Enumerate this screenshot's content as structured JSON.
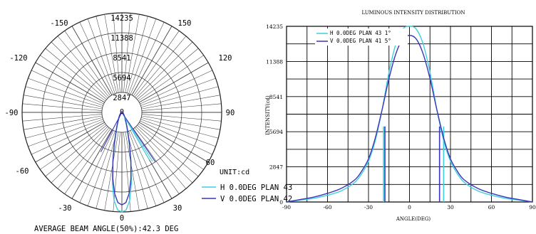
{
  "chart_data": [
    {
      "type": "polar",
      "rings": [
        "14235",
        "11388",
        "8541",
        "5694",
        "2847",
        "0"
      ],
      "angle_labels": [
        "-150",
        "150",
        "-120",
        "120",
        "-90",
        "90",
        "-60",
        "60",
        "-30",
        "30",
        "0"
      ],
      "unit_label": "UNIT:cd",
      "r_max": 14235,
      "legend": [
        {
          "name": "H 0.0DEG PLAN 43",
          "color": "#3ecfe0"
        },
        {
          "name": "V 0.0DEG PLAN 42",
          "color": "#3a36b8"
        }
      ],
      "beam_angle_text": "AVERAGE BEAM ANGLE(50%):42.3 DEG",
      "series": [
        {
          "name": "H 0.0DEG PLAN 43",
          "color": "#3ecfe0",
          "angles": [
            -90,
            -80,
            -70,
            -60,
            -50,
            -40,
            -35,
            -30,
            -25,
            -20,
            -15,
            -10,
            -5,
            0,
            5,
            10,
            15,
            20,
            25,
            30,
            35,
            40,
            50,
            60,
            70,
            80,
            90
          ],
          "values": [
            0,
            150,
            300,
            550,
            900,
            1600,
            2300,
            3300,
            5000,
            7500,
            10500,
            12800,
            14000,
            14235,
            14000,
            12800,
            10500,
            7500,
            5000,
            3300,
            2300,
            1600,
            900,
            550,
            300,
            150,
            0
          ]
        },
        {
          "name": "V 0.0DEG PLAN 42",
          "color": "#3a36b8",
          "angles": [
            -90,
            -80,
            -70,
            -60,
            -50,
            -40,
            -35,
            -30,
            -25,
            -20,
            -15,
            -10,
            -5,
            0,
            5,
            10,
            15,
            20,
            25,
            30,
            35,
            40,
            50,
            60,
            70,
            80,
            90
          ],
          "values": [
            0,
            200,
            400,
            700,
            1100,
            1800,
            2500,
            3500,
            5200,
            7500,
            10000,
            12000,
            13200,
            13500,
            13200,
            12000,
            10000,
            7500,
            5200,
            3500,
            2500,
            1800,
            1100,
            700,
            400,
            200,
            0
          ]
        }
      ]
    },
    {
      "type": "line",
      "title": "LUMINOUS INTENSITY DISTRIBUTION",
      "xlabel": "ANGLE(DEG)",
      "ylabel": "INTENSITY(cd)",
      "xlim": [
        -90,
        90
      ],
      "ylim": [
        0,
        14235
      ],
      "x_ticks": [
        "-90",
        "-60",
        "-30",
        "0",
        "30",
        "60",
        "90"
      ],
      "y_ticks": [
        "14235",
        "11388",
        "8541",
        "5694",
        "2847",
        "0"
      ],
      "grid": true,
      "legend_position": "top-left",
      "series": [
        {
          "name": "H 0.0DEG PLAN 43 1°",
          "color": "#3ecfe0",
          "x": [
            -90,
            -80,
            -70,
            -60,
            -50,
            -40,
            -35,
            -30,
            -25,
            -20,
            -15,
            -10,
            -5,
            0,
            5,
            10,
            15,
            20,
            25,
            30,
            35,
            40,
            50,
            60,
            70,
            80,
            90
          ],
          "y": [
            0,
            150,
            300,
            550,
            900,
            1600,
            2300,
            3300,
            5000,
            7500,
            10500,
            12800,
            14000,
            14235,
            14000,
            12800,
            10500,
            7500,
            5000,
            3300,
            2300,
            1600,
            900,
            550,
            300,
            150,
            0
          ]
        },
        {
          "name": "V 0.0DEG PLAN 41 5°",
          "color": "#3a36b8",
          "x": [
            -90,
            -80,
            -70,
            -60,
            -50,
            -40,
            -35,
            -30,
            -25,
            -20,
            -15,
            -10,
            -5,
            0,
            5,
            10,
            15,
            20,
            25,
            30,
            35,
            40,
            50,
            60,
            70,
            80,
            90
          ],
          "y": [
            0,
            200,
            400,
            700,
            1100,
            1800,
            2500,
            3500,
            5200,
            7500,
            10000,
            12000,
            13200,
            13500,
            13200,
            12000,
            10000,
            7500,
            5200,
            3500,
            2500,
            1800,
            1100,
            700,
            400,
            200,
            0
          ]
        }
      ],
      "beam_markers": [
        {
          "series": "H 0.0DEG PLAN 43 1°",
          "x": [
            -19,
            25
          ]
        },
        {
          "series": "V 0.0DEG PLAN 41 5°",
          "x": [
            -18,
            22
          ]
        }
      ]
    }
  ]
}
